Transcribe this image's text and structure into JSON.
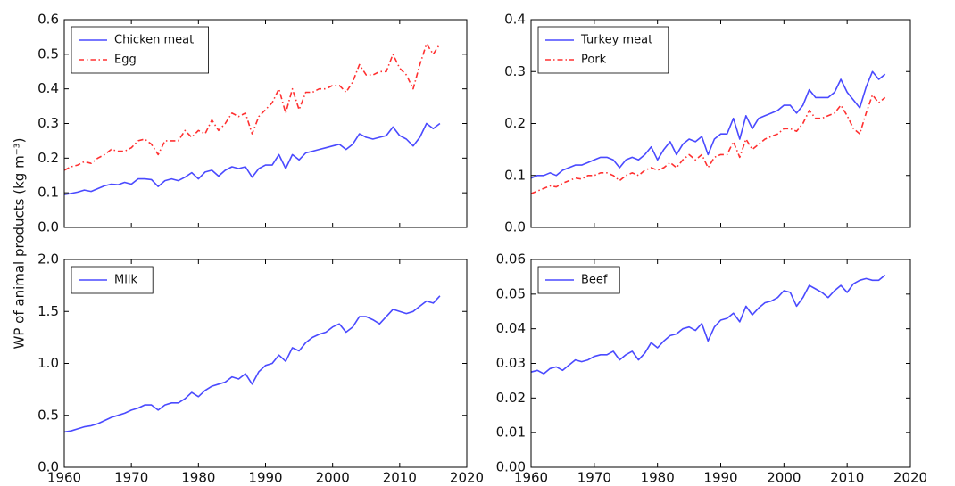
{
  "ylabel": "WP of animal products (kg m⁻³)",
  "chart_data": [
    {
      "type": "line",
      "legend": "upper left",
      "xtick_labels": false,
      "xlim": [
        1960,
        2020
      ],
      "xticks": [
        1960,
        1970,
        1980,
        1990,
        2000,
        2010,
        2020
      ],
      "ylim": [
        0,
        0.6
      ],
      "yticks": [
        {
          "value": 0,
          "label": "0.0"
        },
        0.1,
        0.2,
        0.3,
        0.4,
        0.5,
        0.6
      ],
      "x": [
        1960,
        1961,
        1962,
        1963,
        1964,
        1965,
        1966,
        1967,
        1968,
        1969,
        1970,
        1971,
        1972,
        1973,
        1974,
        1975,
        1976,
        1977,
        1978,
        1979,
        1980,
        1981,
        1982,
        1983,
        1984,
        1985,
        1986,
        1987,
        1988,
        1989,
        1990,
        1991,
        1992,
        1993,
        1994,
        1995,
        1996,
        1997,
        1998,
        1999,
        2000,
        2001,
        2002,
        2003,
        2004,
        2005,
        2006,
        2007,
        2008,
        2009,
        2010,
        2011,
        2012,
        2013,
        2014,
        2015,
        2016
      ],
      "series": [
        {
          "name": "Chicken meat",
          "color": "#4a4aff",
          "linestyle": "solid",
          "values": [
            0.095,
            0.098,
            0.102,
            0.108,
            0.104,
            0.112,
            0.12,
            0.125,
            0.123,
            0.13,
            0.125,
            0.14,
            0.14,
            0.138,
            0.118,
            0.135,
            0.14,
            0.135,
            0.145,
            0.158,
            0.14,
            0.16,
            0.165,
            0.148,
            0.165,
            0.175,
            0.17,
            0.175,
            0.145,
            0.17,
            0.18,
            0.18,
            0.21,
            0.17,
            0.21,
            0.195,
            0.215,
            0.22,
            0.225,
            0.23,
            0.235,
            0.24,
            0.225,
            0.24,
            0.27,
            0.26,
            0.255,
            0.26,
            0.265,
            0.29,
            0.265,
            0.255,
            0.235,
            0.26,
            0.3,
            0.285,
            0.3
          ]
        },
        {
          "name": "Egg",
          "color": "#ff3030",
          "linestyle": "dashdot",
          "values": [
            0.165,
            0.175,
            0.18,
            0.19,
            0.185,
            0.2,
            0.21,
            0.225,
            0.22,
            0.22,
            0.23,
            0.25,
            0.255,
            0.24,
            0.21,
            0.25,
            0.25,
            0.25,
            0.28,
            0.26,
            0.28,
            0.27,
            0.31,
            0.28,
            0.3,
            0.33,
            0.32,
            0.33,
            0.27,
            0.32,
            0.34,
            0.36,
            0.4,
            0.33,
            0.4,
            0.34,
            0.39,
            0.39,
            0.4,
            0.4,
            0.41,
            0.41,
            0.39,
            0.42,
            0.47,
            0.44,
            0.44,
            0.45,
            0.45,
            0.5,
            0.46,
            0.44,
            0.4,
            0.47,
            0.53,
            0.5,
            0.53
          ]
        }
      ]
    },
    {
      "type": "line",
      "legend": "upper left",
      "xtick_labels": false,
      "xlim": [
        1960,
        2020
      ],
      "xticks": [
        1960,
        1970,
        1980,
        1990,
        2000,
        2010,
        2020
      ],
      "ylim": [
        0,
        0.4
      ],
      "yticks": [
        {
          "value": 0,
          "label": "0.0"
        },
        0.1,
        0.2,
        0.3,
        0.4
      ],
      "x": [
        1960,
        1961,
        1962,
        1963,
        1964,
        1965,
        1966,
        1967,
        1968,
        1969,
        1970,
        1971,
        1972,
        1973,
        1974,
        1975,
        1976,
        1977,
        1978,
        1979,
        1980,
        1981,
        1982,
        1983,
        1984,
        1985,
        1986,
        1987,
        1988,
        1989,
        1990,
        1991,
        1992,
        1993,
        1994,
        1995,
        1996,
        1997,
        1998,
        1999,
        2000,
        2001,
        2002,
        2003,
        2004,
        2005,
        2006,
        2007,
        2008,
        2009,
        2010,
        2011,
        2012,
        2013,
        2014,
        2015,
        2016
      ],
      "series": [
        {
          "name": "Turkey meat",
          "color": "#4a4aff",
          "linestyle": "solid",
          "values": [
            0.095,
            0.1,
            0.1,
            0.105,
            0.1,
            0.11,
            0.115,
            0.12,
            0.12,
            0.125,
            0.13,
            0.135,
            0.135,
            0.13,
            0.115,
            0.13,
            0.135,
            0.13,
            0.14,
            0.155,
            0.13,
            0.15,
            0.165,
            0.14,
            0.16,
            0.17,
            0.165,
            0.175,
            0.14,
            0.17,
            0.18,
            0.18,
            0.21,
            0.17,
            0.215,
            0.19,
            0.21,
            0.215,
            0.22,
            0.225,
            0.235,
            0.235,
            0.22,
            0.235,
            0.265,
            0.25,
            0.25,
            0.25,
            0.26,
            0.285,
            0.26,
            0.245,
            0.23,
            0.27,
            0.3,
            0.285,
            0.295
          ]
        },
        {
          "name": "Pork",
          "color": "#ff3030",
          "linestyle": "dashdot",
          "values": [
            0.065,
            0.07,
            0.075,
            0.08,
            0.078,
            0.085,
            0.09,
            0.095,
            0.093,
            0.1,
            0.1,
            0.105,
            0.105,
            0.1,
            0.09,
            0.1,
            0.105,
            0.1,
            0.11,
            0.115,
            0.11,
            0.115,
            0.125,
            0.115,
            0.13,
            0.14,
            0.13,
            0.14,
            0.115,
            0.135,
            0.14,
            0.14,
            0.165,
            0.135,
            0.17,
            0.15,
            0.16,
            0.17,
            0.175,
            0.18,
            0.19,
            0.19,
            0.185,
            0.2,
            0.225,
            0.21,
            0.21,
            0.215,
            0.22,
            0.235,
            0.215,
            0.19,
            0.18,
            0.22,
            0.255,
            0.24,
            0.25
          ]
        }
      ]
    },
    {
      "type": "line",
      "legend": "upper left",
      "xtick_labels": true,
      "xlim": [
        1960,
        2020
      ],
      "xticks": [
        1960,
        1970,
        1980,
        1990,
        2000,
        2010,
        2020
      ],
      "ylim": [
        0,
        2
      ],
      "yticks": [
        {
          "value": 0,
          "label": "0.0"
        },
        0.5,
        {
          "value": 1,
          "label": "1.0"
        },
        1.5,
        {
          "value": 2,
          "label": "2.0"
        }
      ],
      "x": [
        1960,
        1961,
        1962,
        1963,
        1964,
        1965,
        1966,
        1967,
        1968,
        1969,
        1970,
        1971,
        1972,
        1973,
        1974,
        1975,
        1976,
        1977,
        1978,
        1979,
        1980,
        1981,
        1982,
        1983,
        1984,
        1985,
        1986,
        1987,
        1988,
        1989,
        1990,
        1991,
        1992,
        1993,
        1994,
        1995,
        1996,
        1997,
        1998,
        1999,
        2000,
        2001,
        2002,
        2003,
        2004,
        2005,
        2006,
        2007,
        2008,
        2009,
        2010,
        2011,
        2012,
        2013,
        2014,
        2015,
        2016
      ],
      "series": [
        {
          "name": "Milk",
          "color": "#4a4aff",
          "linestyle": "solid",
          "values": [
            0.34,
            0.35,
            0.37,
            0.39,
            0.4,
            0.42,
            0.45,
            0.48,
            0.5,
            0.52,
            0.55,
            0.57,
            0.6,
            0.6,
            0.55,
            0.6,
            0.62,
            0.62,
            0.66,
            0.72,
            0.68,
            0.74,
            0.78,
            0.8,
            0.82,
            0.87,
            0.85,
            0.9,
            0.8,
            0.92,
            0.98,
            1.0,
            1.08,
            1.02,
            1.15,
            1.12,
            1.2,
            1.25,
            1.28,
            1.3,
            1.35,
            1.38,
            1.3,
            1.35,
            1.45,
            1.45,
            1.42,
            1.38,
            1.45,
            1.52,
            1.5,
            1.48,
            1.5,
            1.55,
            1.6,
            1.58,
            1.65
          ]
        }
      ]
    },
    {
      "type": "line",
      "legend": "upper left",
      "xtick_labels": true,
      "xlim": [
        1960,
        2020
      ],
      "xticks": [
        1960,
        1970,
        1980,
        1990,
        2000,
        2010,
        2020
      ],
      "ylim": [
        0,
        0.06
      ],
      "yticks": [
        {
          "value": 0,
          "label": "0.00"
        },
        0.01,
        0.02,
        0.03,
        0.04,
        0.05,
        0.06
      ],
      "x": [
        1960,
        1961,
        1962,
        1963,
        1964,
        1965,
        1966,
        1967,
        1968,
        1969,
        1970,
        1971,
        1972,
        1973,
        1974,
        1975,
        1976,
        1977,
        1978,
        1979,
        1980,
        1981,
        1982,
        1983,
        1984,
        1985,
        1986,
        1987,
        1988,
        1989,
        1990,
        1991,
        1992,
        1993,
        1994,
        1995,
        1996,
        1997,
        1998,
        1999,
        2000,
        2001,
        2002,
        2003,
        2004,
        2005,
        2006,
        2007,
        2008,
        2009,
        2010,
        2011,
        2012,
        2013,
        2014,
        2015,
        2016
      ],
      "series": [
        {
          "name": "Beef",
          "color": "#4a4aff",
          "linestyle": "solid",
          "values": [
            0.0275,
            0.028,
            0.027,
            0.0285,
            0.029,
            0.028,
            0.0295,
            0.031,
            0.0305,
            0.031,
            0.032,
            0.0325,
            0.0325,
            0.0335,
            0.031,
            0.0325,
            0.0335,
            0.031,
            0.033,
            0.036,
            0.0345,
            0.0365,
            0.038,
            0.0385,
            0.04,
            0.0405,
            0.0395,
            0.0415,
            0.0365,
            0.0405,
            0.0425,
            0.043,
            0.0445,
            0.042,
            0.0465,
            0.044,
            0.046,
            0.0475,
            0.048,
            0.049,
            0.051,
            0.0505,
            0.0465,
            0.049,
            0.0525,
            0.0515,
            0.0505,
            0.049,
            0.051,
            0.0525,
            0.0505,
            0.053,
            0.054,
            0.0545,
            0.054,
            0.054,
            0.0555
          ]
        }
      ]
    }
  ]
}
